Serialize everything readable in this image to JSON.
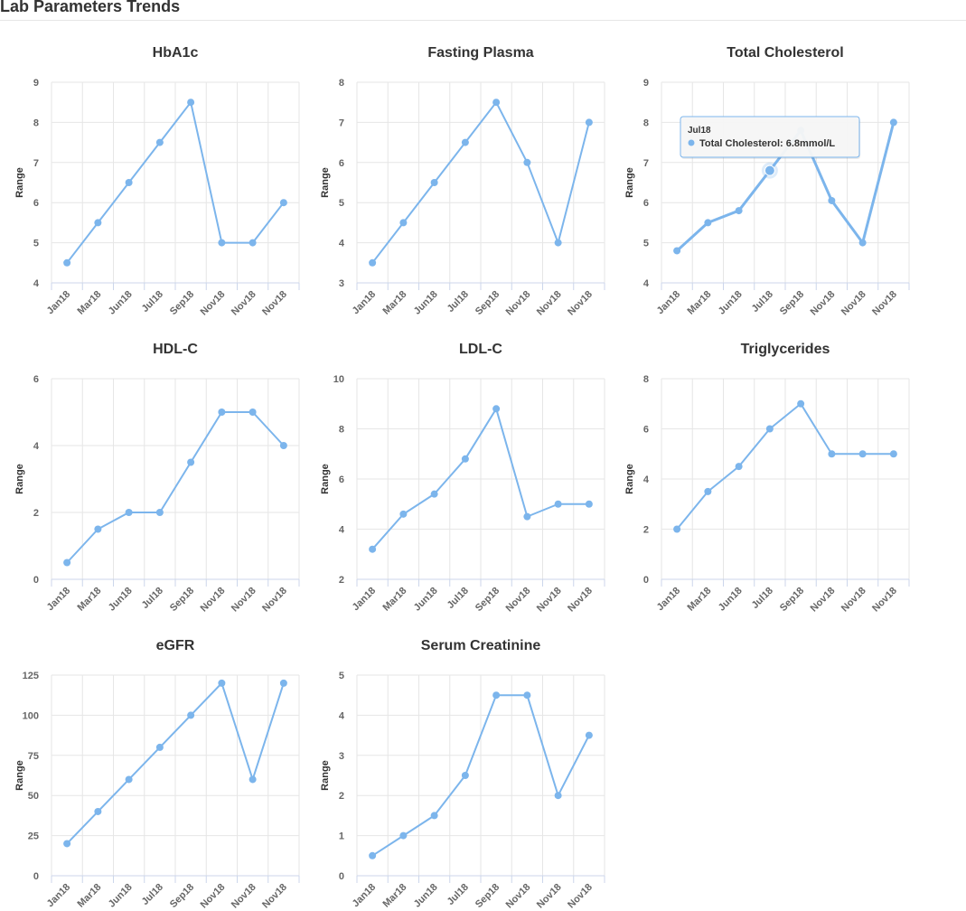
{
  "page": {
    "title": "Lab Parameters Trends"
  },
  "colors": {
    "series": "#7cb5ec",
    "grid": "#e6e6e6",
    "axis": "#ccd6eb",
    "text": "#333333",
    "tick": "#666666"
  },
  "categories": [
    "Jan18",
    "Mar18",
    "Jun18",
    "Jul18",
    "Sep18",
    "Nov18",
    "Nov18",
    "Nov18"
  ],
  "tooltip": {
    "header": "Jul18",
    "label": "Total Cholesterol: 6.8mmol/L"
  },
  "chart_data": [
    {
      "type": "line",
      "title": "HbA1c",
      "ylabel": "Range",
      "xlabel": "",
      "ylim": [
        4,
        9
      ],
      "yticks": [
        4,
        5,
        6,
        7,
        8,
        9
      ],
      "categories": [
        "Jan18",
        "Mar18",
        "Jun18",
        "Jul18",
        "Sep18",
        "Nov18",
        "Nov18",
        "Nov18"
      ],
      "series": [
        {
          "name": "HbA1c",
          "values": [
            4.5,
            5.5,
            6.5,
            7.5,
            8.5,
            5,
            5,
            6
          ]
        }
      ]
    },
    {
      "type": "line",
      "title": "Fasting Plasma",
      "ylabel": "Range",
      "xlabel": "",
      "ylim": [
        3,
        8
      ],
      "yticks": [
        3,
        4,
        5,
        6,
        7,
        8
      ],
      "categories": [
        "Jan18",
        "Mar18",
        "Jun18",
        "Jul18",
        "Sep18",
        "Nov18",
        "Nov18",
        "Nov18"
      ],
      "series": [
        {
          "name": "Fasting Plasma",
          "values": [
            3.5,
            4.5,
            5.5,
            6.5,
            7.5,
            6,
            4,
            7
          ]
        }
      ]
    },
    {
      "type": "line",
      "title": "Total Cholesterol",
      "ylabel": "Range",
      "xlabel": "",
      "ylim": [
        4,
        9
      ],
      "yticks": [
        4,
        5,
        6,
        7,
        8,
        9
      ],
      "categories": [
        "Jan18",
        "Mar18",
        "Jun18",
        "Jul18",
        "Sep18",
        "Nov18",
        "Nov18",
        "Nov18"
      ],
      "hover_index": 3,
      "series": [
        {
          "name": "Total Cholesterol",
          "values": [
            4.8,
            5.5,
            5.8,
            6.8,
            7.8,
            6.05,
            5,
            8
          ]
        }
      ]
    },
    {
      "type": "line",
      "title": "HDL-C",
      "ylabel": "Range",
      "xlabel": "",
      "ylim": [
        0,
        6
      ],
      "yticks": [
        0,
        2,
        4,
        6
      ],
      "categories": [
        "Jan18",
        "Mar18",
        "Jun18",
        "Jul18",
        "Sep18",
        "Nov18",
        "Nov18",
        "Nov18"
      ],
      "series": [
        {
          "name": "HDL-C",
          "values": [
            0.5,
            1.5,
            2,
            2,
            3.5,
            5,
            5,
            4
          ]
        }
      ]
    },
    {
      "type": "line",
      "title": "LDL-C",
      "ylabel": "Range",
      "xlabel": "",
      "ylim": [
        2,
        10
      ],
      "yticks": [
        2,
        4,
        6,
        8,
        10
      ],
      "categories": [
        "Jan18",
        "Mar18",
        "Jun18",
        "Jul18",
        "Sep18",
        "Nov18",
        "Nov18",
        "Nov18"
      ],
      "series": [
        {
          "name": "LDL-C",
          "values": [
            3.2,
            4.6,
            5.4,
            6.8,
            8.8,
            4.5,
            5,
            5
          ]
        }
      ]
    },
    {
      "type": "line",
      "title": "Triglycerides",
      "ylabel": "Range",
      "xlabel": "",
      "ylim": [
        0,
        8
      ],
      "yticks": [
        0,
        2,
        4,
        6,
        8
      ],
      "categories": [
        "Jan18",
        "Mar18",
        "Jun18",
        "Jul18",
        "Sep18",
        "Nov18",
        "Nov18",
        "Nov18"
      ],
      "series": [
        {
          "name": "Triglycerides",
          "values": [
            2,
            3.5,
            4.5,
            6,
            7,
            5,
            5,
            5
          ]
        }
      ]
    },
    {
      "type": "line",
      "title": "eGFR",
      "ylabel": "Range",
      "xlabel": "",
      "ylim": [
        0,
        125
      ],
      "yticks": [
        0,
        25,
        50,
        75,
        100,
        125
      ],
      "categories": [
        "Jan18",
        "Mar18",
        "Jun18",
        "Jul18",
        "Sep18",
        "Nov18",
        "Nov18",
        "Nov18"
      ],
      "series": [
        {
          "name": "eGFR",
          "values": [
            20,
            40,
            60,
            80,
            100,
            120,
            60,
            120
          ]
        }
      ]
    },
    {
      "type": "line",
      "title": "Serum Creatinine",
      "ylabel": "Range",
      "xlabel": "",
      "ylim": [
        0,
        5
      ],
      "yticks": [
        0,
        1,
        2,
        3,
        4,
        5
      ],
      "categories": [
        "Jan18",
        "Mar18",
        "Jun18",
        "Jul18",
        "Sep18",
        "Nov18",
        "Nov18",
        "Nov18"
      ],
      "series": [
        {
          "name": "Serum Creatinine",
          "values": [
            0.5,
            1,
            1.5,
            2.5,
            4.5,
            4.5,
            2,
            3.5
          ]
        }
      ]
    }
  ]
}
